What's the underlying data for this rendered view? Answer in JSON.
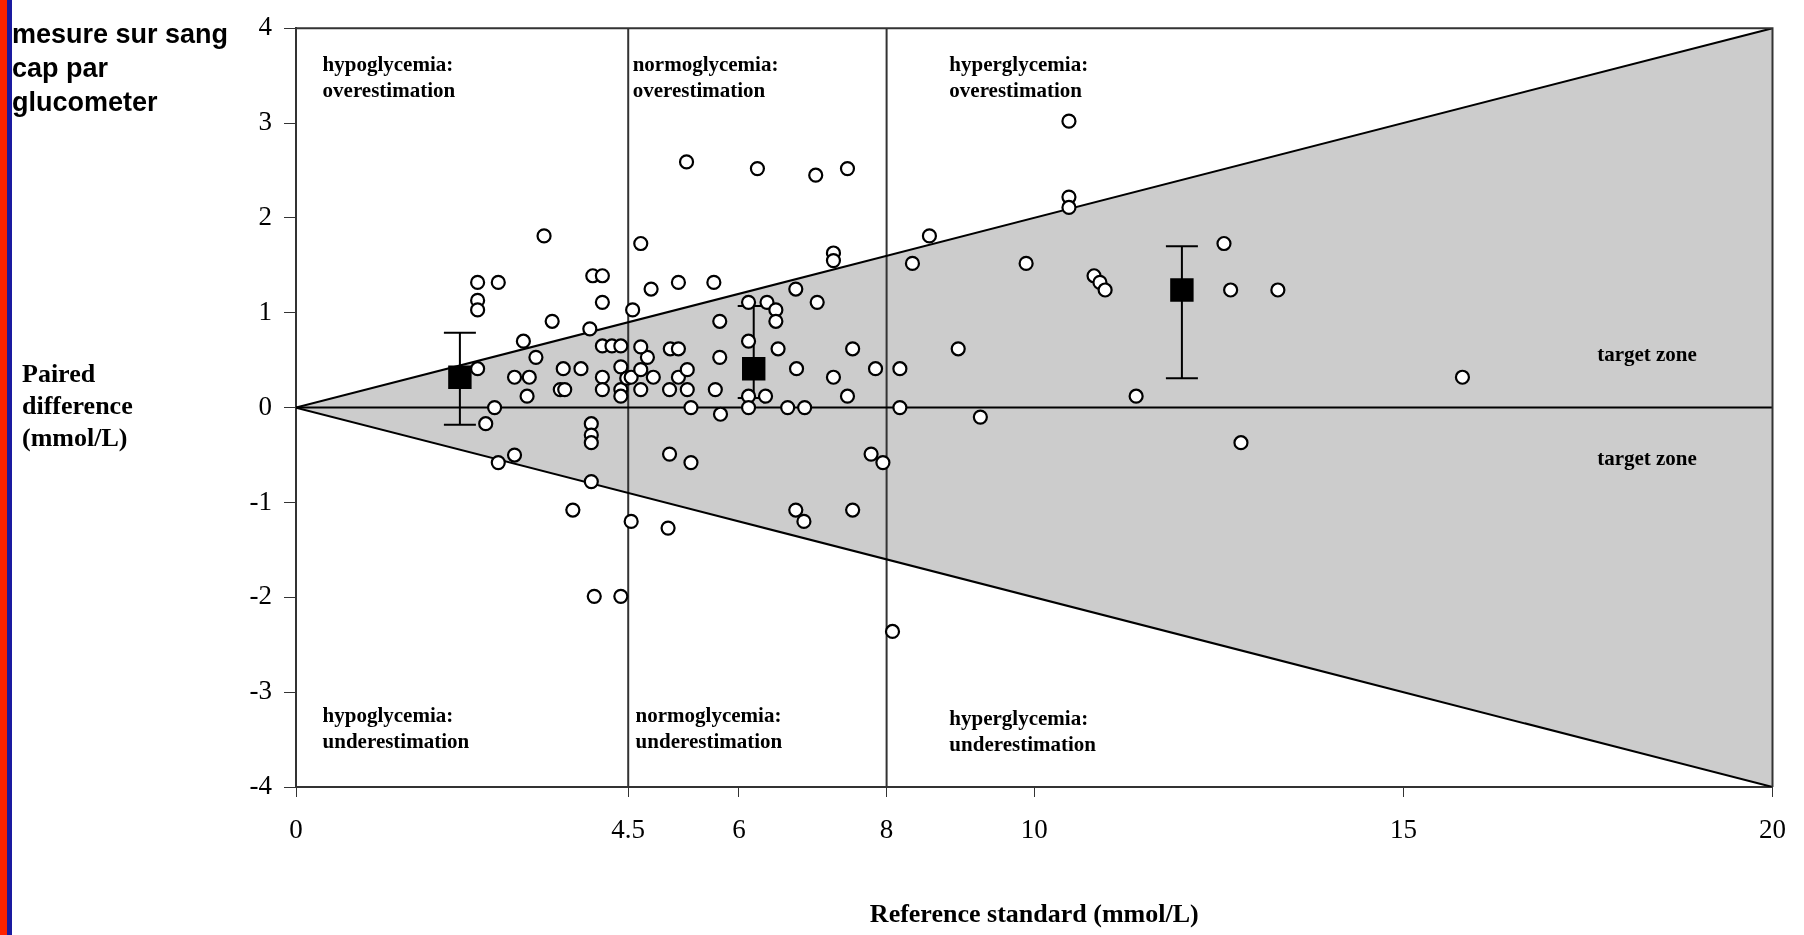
{
  "chart_data": {
    "type": "scatter",
    "xlabel": "Reference standard (mmol/L)",
    "ylabel": "Paired difference (mmol/L)",
    "xlim": [
      0,
      20
    ],
    "xticks": [
      0,
      4.5,
      6,
      8,
      10,
      15,
      20
    ],
    "ylim": [
      -4,
      4
    ],
    "yticks": [
      -4,
      -3,
      -2,
      -1,
      0,
      1,
      2,
      3,
      4
    ],
    "grid": false,
    "legend": false,
    "ref_lines": [
      {
        "axis": "x",
        "value": 4.5,
        "color": "#333333"
      },
      {
        "axis": "x",
        "value": 8,
        "color": "#333333"
      }
    ],
    "annotations": [
      "hypoglycemia: overestimation",
      "normoglycemia: overestimation",
      "hyperglycemia: overestimation",
      "hypoglycemia: underestimation",
      "normoglycemia: underestimation",
      "hyperglycemia: underestimation",
      "target zone",
      "target zone",
      "mesure sur sang cap par glucometer"
    ],
    "series": [
      {
        "type": "line",
        "color": "#000000",
        "marker": "none",
        "x": [
          0,
          20
        ],
        "values": [
          0,
          0
        ],
        "lower": [
          0,
          -4
        ],
        "upper": [
          0,
          4
        ]
      },
      {
        "type": "line",
        "color": "#000000",
        "marker": "none",
        "x": [
          0,
          20
        ],
        "values": [
          0,
          4
        ]
      },
      {
        "type": "line",
        "color": "#000000",
        "marker": "none",
        "x": [
          0,
          20
        ],
        "values": [
          0,
          -4
        ]
      },
      {
        "color": "#000000",
        "marker": "circle",
        "x": [
          2.46,
          2.46,
          2.46,
          2.74,
          2.46,
          2.69,
          2.57,
          2.74,
          2.96,
          3.08,
          3.25,
          2.96,
          3.16,
          3.13,
          3.36,
          3.47,
          3.62,
          3.58,
          3.64,
          3.86,
          3.75,
          3.98,
          4.02,
          4.15,
          4.15,
          4.0,
          4.0,
          4.0,
          4.0,
          4.04,
          4.4,
          4.15,
          4.28,
          4.4,
          4.15,
          4.15,
          4.4,
          4.4,
          4.48,
          4.4,
          4.54,
          4.67,
          4.56,
          4.81,
          4.76,
          4.67,
          4.84,
          4.67,
          4.67,
          4.54,
          5.04,
          5.06,
          5.18,
          5.29,
          5.07,
          5.18,
          5.06,
          5.18,
          5.3,
          5.3,
          5.35,
          5.35,
          5.66,
          5.74,
          5.74,
          5.68,
          5.75,
          6.13,
          6.13,
          6.13,
          6.13,
          6.25,
          6.38,
          6.5,
          6.5,
          6.77,
          6.78,
          6.53,
          6.36,
          6.66,
          6.89,
          7.04,
          7.06,
          7.28,
          7.28,
          7.28,
          7.47,
          7.47,
          7.54,
          6.77,
          6.88,
          7.54,
          7.79,
          7.85,
          7.95,
          8.08,
          8.18,
          8.18,
          8.35,
          8.58,
          8.97,
          9.27,
          9.89,
          10.47,
          10.47,
          10.47,
          10.81,
          10.89,
          10.96,
          11.38,
          12.57,
          12.66,
          12.8,
          13.3,
          15.8
        ],
        "values": [
          1.32,
          1.13,
          1.03,
          1.32,
          0.41,
          0,
          -0.17,
          -0.58,
          -0.5,
          0.7,
          0.53,
          0.32,
          0.32,
          0.12,
          1.81,
          0.91,
          0.41,
          0.19,
          0.19,
          0.41,
          -1.08,
          0.83,
          1.39,
          1.39,
          1.11,
          -0.17,
          -0.29,
          -0.37,
          -0.78,
          -1.99,
          -1.99,
          0.65,
          0.65,
          0.65,
          0.32,
          0.19,
          0.43,
          0.19,
          0.31,
          0.12,
          0.32,
          1.73,
          1.03,
          1.25,
          0.53,
          0.4,
          0.32,
          0.19,
          0.64,
          -1.2,
          -1.27,
          -0.49,
          1.32,
          2.59,
          0.62,
          0.62,
          0.19,
          0.32,
          0.4,
          0.19,
          0,
          -0.58,
          1.32,
          0.91,
          0.53,
          0.19,
          -0.07,
          1.11,
          0.7,
          0.12,
          0,
          2.52,
          1.11,
          1.03,
          0.91,
          1.25,
          0.41,
          0.62,
          0.12,
          0,
          0,
          2.45,
          1.11,
          1.63,
          1.55,
          0.32,
          2.52,
          0.12,
          0.62,
          -1.08,
          -1.2,
          -1.08,
          -0.49,
          0.41,
          -0.58,
          -2.36,
          0.41,
          0,
          1.52,
          1.81,
          0.62,
          -0.1,
          1.52,
          3.02,
          2.22,
          2.11,
          1.39,
          1.32,
          1.24,
          0.12,
          1.73,
          1.24,
          -0.37,
          1.24,
          0.32
        ]
      },
      {
        "type": "scatter",
        "color": "#000000",
        "marker": "square",
        "x": [
          2.22,
          6.2,
          12.0
        ],
        "values": [
          0.32,
          0.41,
          1.24
        ],
        "errors": [
          [
            -0.18,
            0.79
          ],
          [
            0.1,
            1.07
          ],
          [
            0.31,
            1.7
          ]
        ]
      }
    ]
  }
}
